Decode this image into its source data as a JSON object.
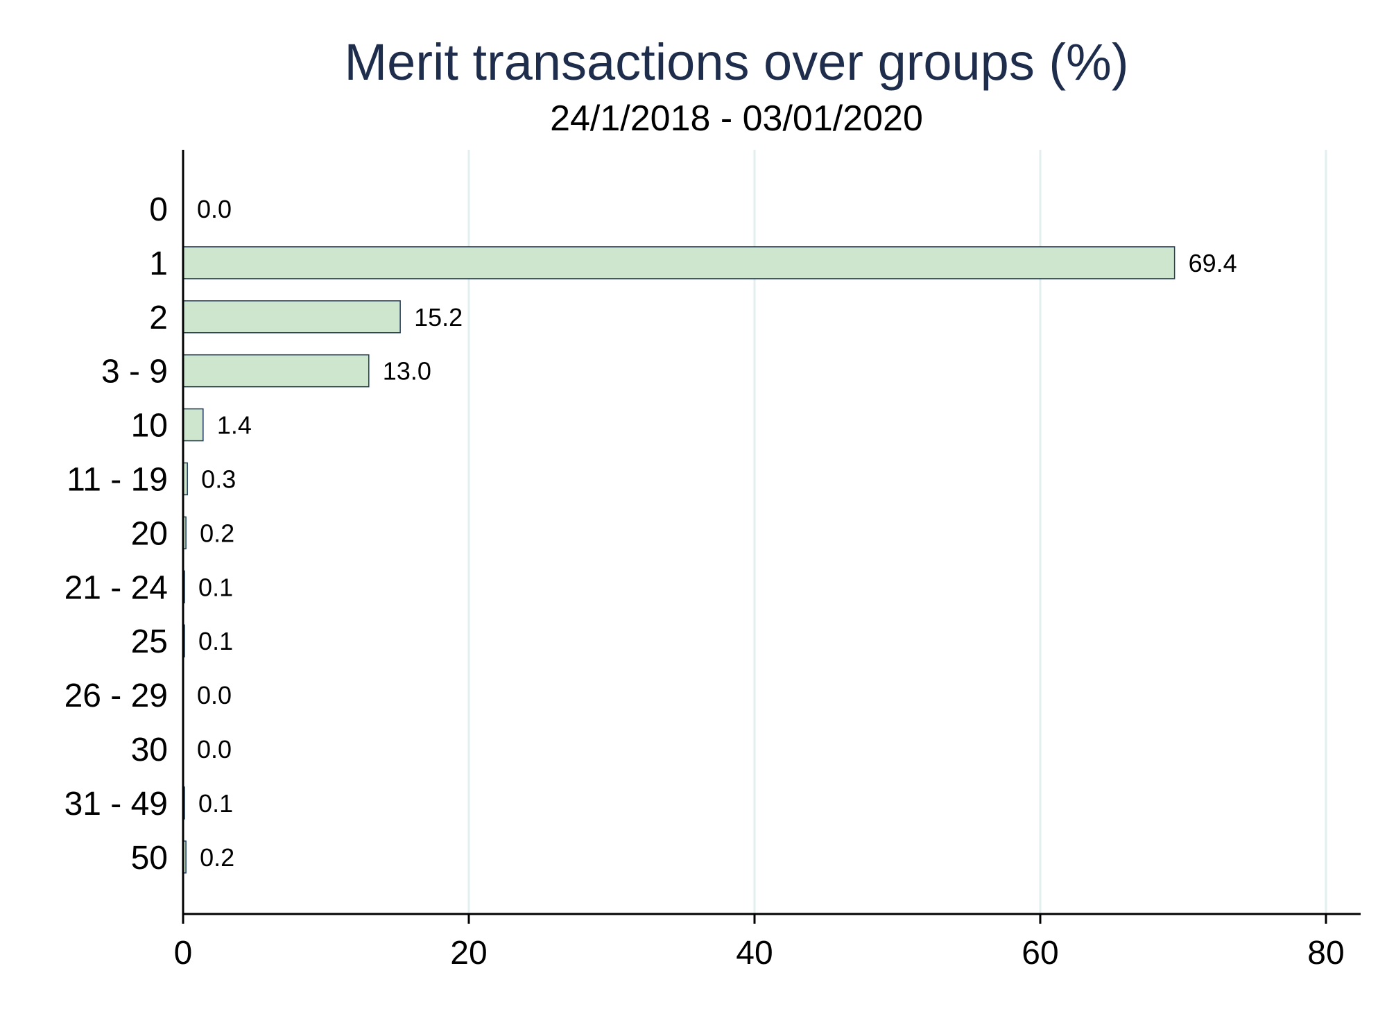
{
  "chart_data": {
    "type": "bar",
    "orientation": "horizontal",
    "title": "Merit transactions over groups (%)",
    "subtitle": "24/1/2018 - 03/01/2020",
    "xlabel": "",
    "ylabel": "",
    "categories": [
      "0",
      "1",
      "2",
      "3 - 9",
      "10",
      "11 - 19",
      "20",
      "21 - 24",
      "25",
      "26 - 29",
      "30",
      "31 - 49",
      "50"
    ],
    "values": [
      0.0,
      69.4,
      15.2,
      13.0,
      1.4,
      0.3,
      0.2,
      0.1,
      0.1,
      0.0,
      0.0,
      0.1,
      0.2
    ],
    "data_labels": [
      "0.0",
      "69.4",
      "15.2",
      "13.0",
      "1.4",
      "0.3",
      "0.2",
      "0.1",
      "0.1",
      "0.0",
      "0.0",
      "0.1",
      "0.2"
    ],
    "xlim": [
      0,
      80
    ],
    "xticks": [
      0,
      20,
      40,
      60,
      80
    ],
    "xtick_labels": [
      "0",
      "20",
      "40",
      "60",
      "80"
    ],
    "grid": "vertical",
    "legend": "none"
  },
  "colors": {
    "title": "#1f2d4d",
    "bar_fill": "#cde6cd",
    "bar_stroke": "#1f3a5f",
    "grid": "#e3eeee",
    "axis": "#000000"
  }
}
